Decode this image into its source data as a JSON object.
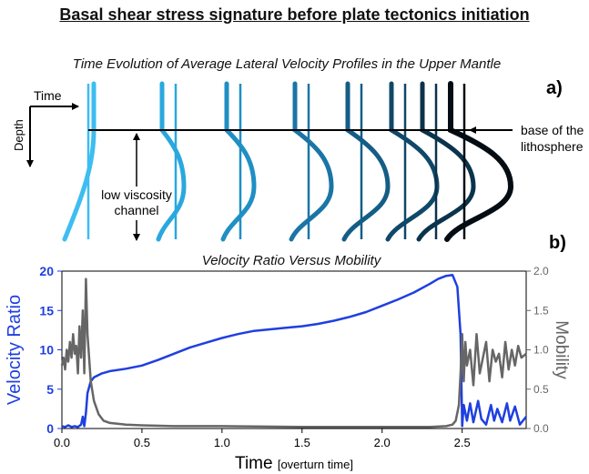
{
  "header": {
    "title": "Basal shear stress signature before plate tectonics initiation"
  },
  "panel_a": {
    "title": "Time Evolution of Average Lateral Velocity Profiles in the Upper Mantle",
    "label": "a)",
    "time_label": "Time",
    "depth_label": "Depth",
    "lithosphere_label_line1": "base of the",
    "lithosphere_label_line2": "lithosphere",
    "channel_label_line1": "low viscosity",
    "channel_label_line2": "channel",
    "profile_colors": [
      "#3dbdf0",
      "#2aa8de",
      "#1f8fc4",
      "#1a75a6",
      "#145d86",
      "#0f4868",
      "#0b334b",
      "#050d14"
    ]
  },
  "panel_b": {
    "title": "Velocity Ratio Versus Mobility",
    "label": "b)"
  },
  "chart_data": {
    "type": "line",
    "title": "Velocity Ratio Versus Mobility",
    "xlabel": "Time",
    "xlabel_unit": "[overturn time]",
    "ylabel": "Velocity Ratio",
    "y2label": "Mobility",
    "xlim": [
      0.0,
      2.9
    ],
    "ylim": [
      0,
      20
    ],
    "y2lim": [
      0.0,
      2.0
    ],
    "xticks": [
      "0.0",
      "0.5",
      "1.0",
      "1.5",
      "2.0",
      "2.5"
    ],
    "yticks": [
      "0",
      "5",
      "10",
      "15",
      "20"
    ],
    "y2ticks": [
      "0.0",
      "0.5",
      "1.0",
      "1.5",
      "2.0"
    ],
    "colors": {
      "velocity": "#1f3fe0",
      "mobility": "#666666"
    },
    "series": [
      {
        "axis": "left",
        "x": [
          0.0,
          0.02,
          0.04,
          0.06,
          0.08,
          0.1,
          0.12,
          0.13,
          0.14,
          0.15,
          0.16,
          0.18,
          0.2,
          0.25,
          0.3,
          0.4,
          0.5,
          0.6,
          0.7,
          0.8,
          0.9,
          1.0,
          1.1,
          1.2,
          1.3,
          1.4,
          1.5,
          1.6,
          1.7,
          1.8,
          1.9,
          2.0,
          2.1,
          2.2,
          2.3,
          2.35,
          2.4,
          2.44,
          2.47,
          2.49,
          2.5,
          2.51,
          2.53,
          2.55,
          2.57,
          2.6,
          2.62,
          2.65,
          2.68,
          2.7,
          2.72,
          2.75,
          2.78,
          2.8,
          2.83,
          2.86,
          2.9
        ],
        "y": [
          0.3,
          0.2,
          0.4,
          0.2,
          0.3,
          0.2,
          0.5,
          1.5,
          0.3,
          2.0,
          4.5,
          6.0,
          6.5,
          7.0,
          7.3,
          7.6,
          8.0,
          8.7,
          9.5,
          10.3,
          10.9,
          11.5,
          12.0,
          12.4,
          12.6,
          12.8,
          13.0,
          13.3,
          13.7,
          14.2,
          14.8,
          15.6,
          16.4,
          17.3,
          18.4,
          19.0,
          19.4,
          19.5,
          18.0,
          12.0,
          0.3,
          3.0,
          1.0,
          3.2,
          0.8,
          3.5,
          1.2,
          0.5,
          3.0,
          1.0,
          2.5,
          0.8,
          3.2,
          1.0,
          2.8,
          0.5,
          1.5
        ]
      },
      {
        "axis": "right",
        "x": [
          0.0,
          0.01,
          0.02,
          0.03,
          0.04,
          0.05,
          0.06,
          0.07,
          0.08,
          0.09,
          0.1,
          0.11,
          0.12,
          0.13,
          0.14,
          0.15,
          0.16,
          0.18,
          0.2,
          0.23,
          0.26,
          0.3,
          0.4,
          0.5,
          0.7,
          1.0,
          1.5,
          2.0,
          2.3,
          2.4,
          2.44,
          2.46,
          2.48,
          2.49,
          2.5,
          2.51,
          2.52,
          2.53,
          2.55,
          2.57,
          2.59,
          2.61,
          2.63,
          2.65,
          2.67,
          2.69,
          2.71,
          2.73,
          2.75,
          2.77,
          2.79,
          2.81,
          2.83,
          2.85,
          2.87,
          2.9
        ],
        "y": [
          0.8,
          0.9,
          0.75,
          1.0,
          0.85,
          1.1,
          0.9,
          1.2,
          0.95,
          1.05,
          0.7,
          1.3,
          0.9,
          1.5,
          0.7,
          1.9,
          1.2,
          0.6,
          0.35,
          0.18,
          0.1,
          0.07,
          0.05,
          0.04,
          0.03,
          0.03,
          0.02,
          0.02,
          0.02,
          0.03,
          0.05,
          0.1,
          0.3,
          0.7,
          1.2,
          0.6,
          1.1,
          0.8,
          1.0,
          0.55,
          1.2,
          0.7,
          0.9,
          1.1,
          0.6,
          1.0,
          0.85,
          0.95,
          0.65,
          1.1,
          0.75,
          1.0,
          0.8,
          1.05,
          0.9,
          0.95
        ]
      }
    ]
  }
}
